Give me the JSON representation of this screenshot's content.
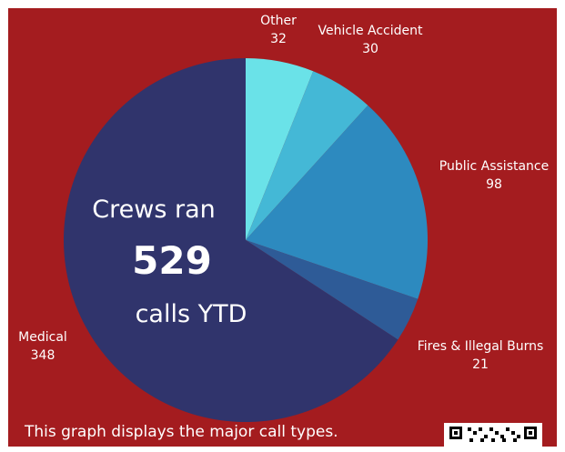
{
  "chart_data": {
    "type": "pie",
    "title": "",
    "total_text": {
      "line1": "Crews ran",
      "line2": "529",
      "line3": "calls YTD"
    },
    "slices": [
      {
        "name": "Other",
        "value": 32,
        "color": "#6ae2e8"
      },
      {
        "name": "Vehicle Accident",
        "value": 30,
        "color": "#44b8d6"
      },
      {
        "name": "Public Assistance",
        "value": 98,
        "color": "#2d8abf"
      },
      {
        "name": "Fires & Illegal Burns",
        "value": 21,
        "color": "#2e5b97"
      },
      {
        "name": "Medical",
        "value": 348,
        "color": "#30346c"
      }
    ]
  },
  "caption": "This graph displays the major call types.",
  "colors": {
    "background": "#a41c1f",
    "text": "#ffffff"
  },
  "qr_icon": "qr-code-icon"
}
